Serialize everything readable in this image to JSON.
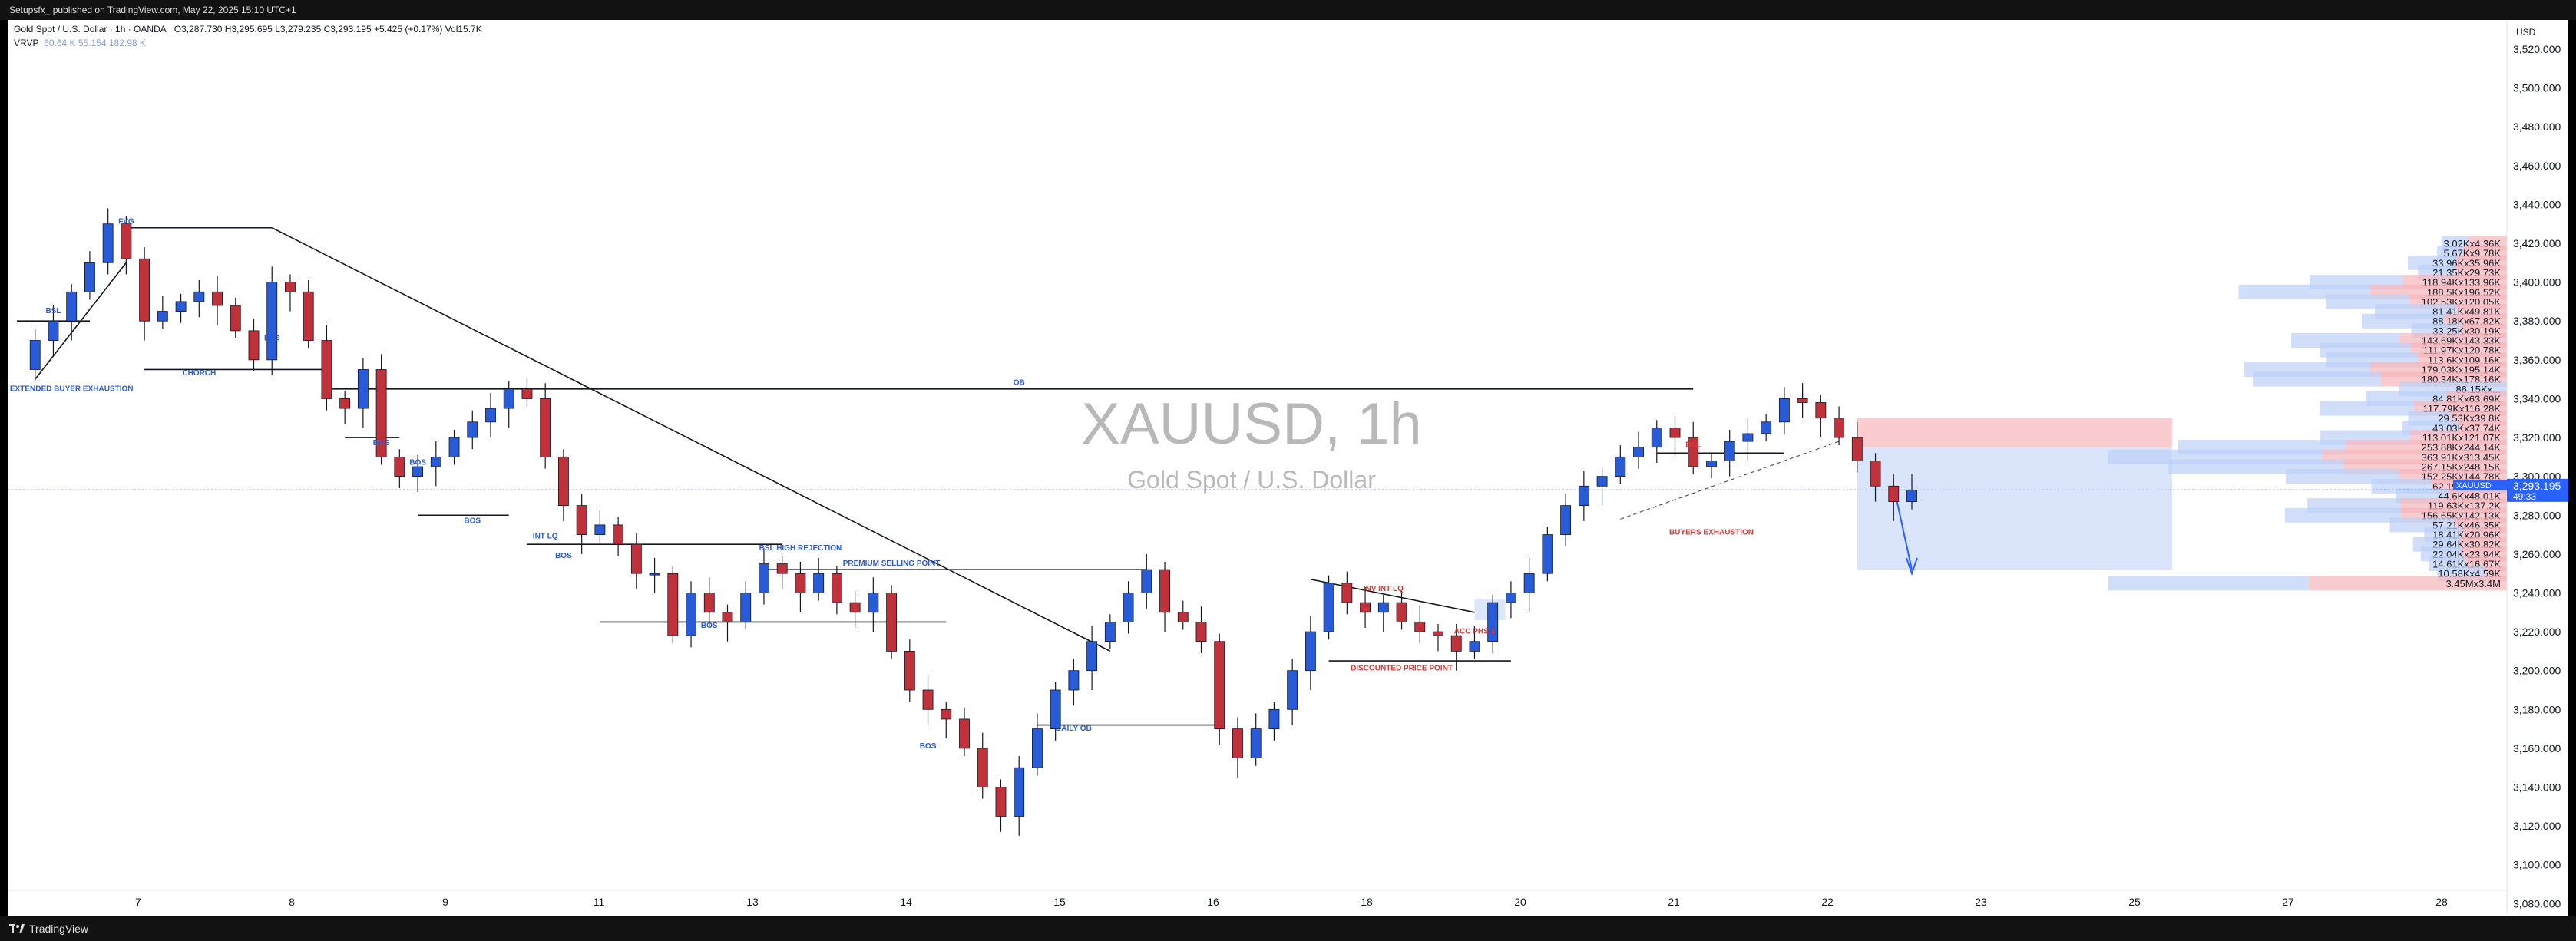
{
  "header": {
    "publisher": "Setupsfx_ published on TradingView.com, May 22, 2025 15:10 UTC+1",
    "symbol_line": "Gold Spot / U.S. Dollar · 1h · OANDA",
    "ohlc": "O3,287.730  H3,295.695  L3,279.235  C3,293.195  +5.425 (+0.17%)  Vol15.7K",
    "vrvp_label": "VRVP",
    "vrvp_values": "60.64 K   55.154   182.98 K"
  },
  "footer": {
    "brand": "TradingView"
  },
  "watermark": {
    "symbol": "XAUUSD, 1h",
    "name": "Gold Spot / U.S. Dollar"
  },
  "price_axis": {
    "currency": "USD",
    "labels": [
      "3,520.000",
      "3,500.000",
      "3,480.000",
      "3,460.000",
      "3,440.000",
      "3,420.000",
      "3,400.000",
      "3,380.000",
      "3,360.000",
      "3,340.000",
      "3,320.000",
      "3,300.000",
      "3,280.000",
      "3,260.000",
      "3,240.000",
      "3,220.000",
      "3,200.000",
      "3,180.000",
      "3,160.000",
      "3,140.000",
      "3,120.000",
      "3,100.000",
      "3,080.000"
    ],
    "current_tag": {
      "symbol": "XAUUSD",
      "price": "3,293.195",
      "countdown": "49:33"
    }
  },
  "annotations": [
    "BSL",
    "EXTENDED BUYER EXHAUSTION",
    "FVG",
    "FVG",
    "CHORCH",
    "BOS",
    "BOS",
    "BOS",
    "BOS",
    "INT LQ",
    "BSL HIGH REJECTION",
    "PREMIUM SELLING POINT",
    "BOS",
    "BOS",
    "DAILY OB",
    "OB",
    "INV INT LQ",
    "ACC PHS 1",
    "DISCOUNTED PRICE POINT",
    "BSL",
    "BUYERS EXHAUSTION"
  ],
  "chart_data": {
    "type": "candlestick",
    "title": "XAUUSD, 1h",
    "subtitle": "Gold Spot / U.S. Dollar",
    "x_ticks": [
      "7",
      "8",
      "9",
      "11",
      "13",
      "14",
      "15",
      "16",
      "18",
      "20",
      "21",
      "22",
      "23",
      "25",
      "27",
      "28"
    ],
    "ylim": [
      3075,
      3535
    ],
    "current_price": 3293.195,
    "price_path": [
      3355,
      3370,
      3380,
      3395,
      3410,
      3430,
      3412,
      3380,
      3385,
      3390,
      3395,
      3388,
      3375,
      3360,
      3400,
      3395,
      3370,
      3340,
      3335,
      3355,
      3310,
      3300,
      3305,
      3310,
      3320,
      3328,
      3335,
      3345,
      3340,
      3310,
      3285,
      3270,
      3275,
      3265,
      3250,
      3250,
      3218,
      3240,
      3230,
      3225,
      3240,
      3255,
      3250,
      3240,
      3250,
      3235,
      3230,
      3240,
      3210,
      3190,
      3180,
      3175,
      3160,
      3140,
      3125,
      3150,
      3170,
      3190,
      3200,
      3215,
      3225,
      3240,
      3252,
      3230,
      3225,
      3215,
      3170,
      3155,
      3170,
      3180,
      3200,
      3220,
      3245,
      3235,
      3230,
      3235,
      3225,
      3220,
      3218,
      3210,
      3215,
      3235,
      3240,
      3250,
      3270,
      3285,
      3295,
      3300,
      3310,
      3315,
      3325,
      3320,
      3305,
      3308,
      3318,
      3322,
      3328,
      3340,
      3338,
      3330,
      3320,
      3308,
      3295,
      3287,
      3293
    ],
    "volume_profile": [
      {
        "price": 3420,
        "buy": "3.02K",
        "sell": "4.36K"
      },
      {
        "price": 3415,
        "buy": "5.67K",
        "sell": "9.78K"
      },
      {
        "price": 3410,
        "buy": "33.96K",
        "sell": "35.96K"
      },
      {
        "price": 3405,
        "buy": "21.35K",
        "sell": "29.73K"
      },
      {
        "price": 3400,
        "buy": "118.94K",
        "sell": "133.96K"
      },
      {
        "price": 3395,
        "buy": "188.5K",
        "sell": "196.52K"
      },
      {
        "price": 3390,
        "buy": "102.53K",
        "sell": "120.05K"
      },
      {
        "price": 3385,
        "buy": "81.41K",
        "sell": "49.81K"
      },
      {
        "price": 3380,
        "buy": "88.18K",
        "sell": "67.82K"
      },
      {
        "price": 3375,
        "buy": "33.25K",
        "sell": "30.19K"
      },
      {
        "price": 3370,
        "buy": "143.69K",
        "sell": "143.33K"
      },
      {
        "price": 3365,
        "buy": "111.97K",
        "sell": "120.78K"
      },
      {
        "price": 3360,
        "buy": "113.6K",
        "sell": "109.16K"
      },
      {
        "price": 3355,
        "buy": "179.03K",
        "sell": "195.14K"
      },
      {
        "price": 3350,
        "buy": "180.34K",
        "sell": "178.16K"
      },
      {
        "price": 3345,
        "buy": "86.15K",
        "sell": "..."
      },
      {
        "price": 3340,
        "buy": "84.81K",
        "sell": "63.69K"
      },
      {
        "price": 3335,
        "buy": "117.79K",
        "sell": "116.28K"
      },
      {
        "price": 3330,
        "buy": "29.53K",
        "sell": "39.8K"
      },
      {
        "price": 3325,
        "buy": "43.03K",
        "sell": "37.74K"
      },
      {
        "price": 3320,
        "buy": "113.01K",
        "sell": "121.07K"
      },
      {
        "price": 3315,
        "buy": "253.88K",
        "sell": "244.14K"
      },
      {
        "price": 3310,
        "buy": "363.91K",
        "sell": "313.45K"
      },
      {
        "price": 3305,
        "buy": "267.15K",
        "sell": "248.15K"
      },
      {
        "price": 3300,
        "buy": "152.25K",
        "sell": "144.78K"
      },
      {
        "price": 3295,
        "buy": "62.19K",
        "sell": "75.66K"
      },
      {
        "price": 3290,
        "buy": "44.6K",
        "sell": "48.01K"
      },
      {
        "price": 3285,
        "buy": "119.63K",
        "sell": "137.2K"
      },
      {
        "price": 3280,
        "buy": "156.65K",
        "sell": "142.13K"
      },
      {
        "price": 3275,
        "buy": "57.21K",
        "sell": "46.35K"
      },
      {
        "price": 3270,
        "buy": "18.41K",
        "sell": "20.96K"
      },
      {
        "price": 3265,
        "buy": "29.64K",
        "sell": "30.82K"
      },
      {
        "price": 3260,
        "buy": "22.04K",
        "sell": "23.94K"
      },
      {
        "price": 3255,
        "buy": "14.61K",
        "sell": "16.67K"
      },
      {
        "price": 3250,
        "buy": "10.58K",
        "sell": "4.59K"
      },
      {
        "price": 3245,
        "buy": "3.45M",
        "sell": "3.4M"
      }
    ]
  }
}
